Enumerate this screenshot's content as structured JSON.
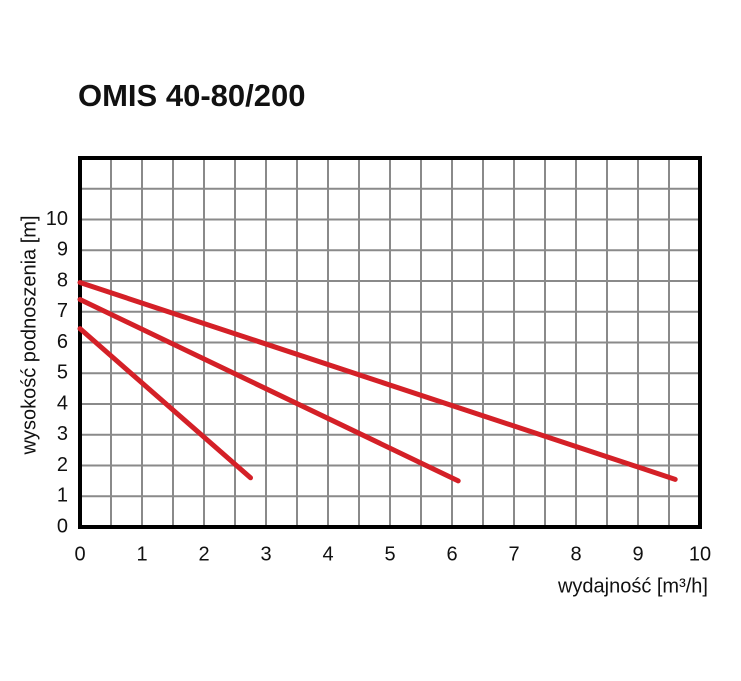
{
  "chart_data": {
    "type": "line",
    "title": "OMIS 40-80/200",
    "xlabel": "wydajność [m³/h]",
    "ylabel": "wysokość podnoszenia [m]",
    "xlim": [
      0,
      10
    ],
    "ylim": [
      0,
      12
    ],
    "xticks": [
      0,
      1,
      2,
      3,
      4,
      5,
      6,
      7,
      8,
      9,
      10
    ],
    "yticks": [
      0,
      1,
      2,
      3,
      4,
      5,
      6,
      7,
      8,
      9,
      10
    ],
    "xgrid": [
      0.5,
      1,
      1.5,
      2,
      2.5,
      3,
      3.5,
      4,
      4.5,
      5,
      5.5,
      6,
      6.5,
      7,
      7.5,
      8,
      8.5,
      9,
      9.5
    ],
    "ygrid": [
      1,
      2,
      3,
      4,
      5,
      6,
      7,
      8,
      9,
      10,
      11
    ],
    "series": [
      {
        "color": "#d42027",
        "x": [
          0,
          2.75
        ],
        "values": [
          6.45,
          1.6
        ]
      },
      {
        "color": "#d42027",
        "x": [
          0,
          6.1
        ],
        "values": [
          7.4,
          1.5
        ]
      },
      {
        "color": "#d42027",
        "x": [
          0,
          9.6
        ],
        "values": [
          7.95,
          1.55
        ]
      }
    ]
  }
}
